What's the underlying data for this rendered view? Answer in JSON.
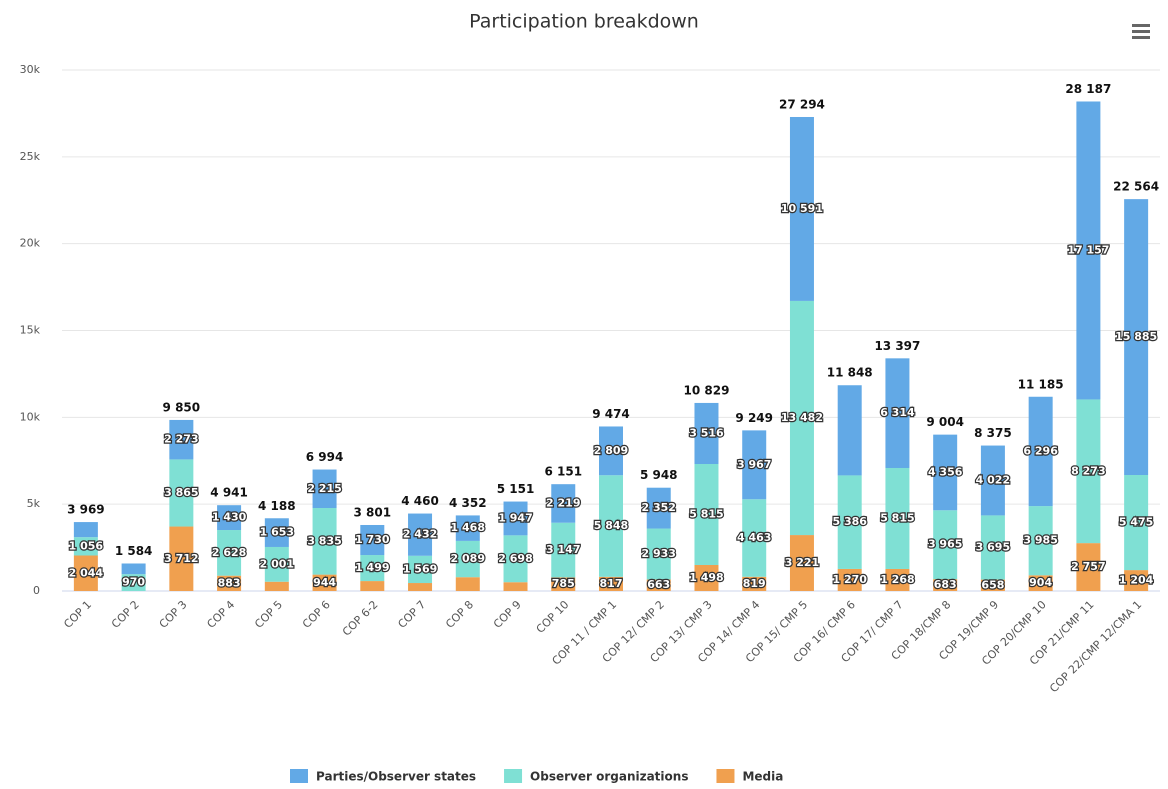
{
  "chart_data": {
    "type": "stacked-bar",
    "title": "Participation breakdown",
    "categories": [
      "COP 1",
      "COP 2",
      "COP 3",
      "COP 4",
      "COP 5",
      "COP 6",
      "COP 6-2",
      "COP 7",
      "COP 8",
      "COP 9",
      "COP 10",
      "COP 11 / CMP 1",
      "COP 12/ CMP 2",
      "COP 13/ CMP 3",
      "COP 14/ CMP 4",
      "COP 15/ CMP 5",
      "COP 16/ CMP 6",
      "COP 17/ CMP 7",
      "COP 18/CMP 8",
      "COP 19/CMP 9",
      "COP 20/CMP 10",
      "COP 21/CMP 11",
      "COP 22/CMP 12/CMA 1"
    ],
    "series": [
      {
        "name": "Parties/Observer states",
        "color": "#62a9e6",
        "values": [
          869,
          614,
          2273,
          1430,
          1653,
          2215,
          1730,
          2432,
          1468,
          1947,
          2219,
          2809,
          2352,
          3516,
          3967,
          10591,
          5192,
          6314,
          4356,
          4022,
          6296,
          17157,
          15885
        ],
        "value_labels": [
          null,
          null,
          "2 273",
          "1 430",
          "1 653",
          "2 215",
          "1 730",
          "2 432",
          "1 468",
          "1 947",
          "2 219",
          "2 809",
          "2 352",
          "3 516",
          "3 967",
          "10 591",
          null,
          "6 314",
          "4 356",
          "4 022",
          "6 296",
          "17 157",
          "15 885"
        ]
      },
      {
        "name": "Observer organizations",
        "color": "#7fe0d4",
        "values": [
          1056,
          970,
          3865,
          2628,
          2001,
          3835,
          1499,
          1569,
          2089,
          2698,
          3147,
          5848,
          2933,
          5815,
          4463,
          13482,
          5386,
          5815,
          3965,
          3695,
          3985,
          8273,
          5475
        ],
        "value_labels": [
          "1 056",
          "970",
          "3 865",
          "2 628",
          "2 001",
          "3 835",
          "1 499",
          "1 569",
          "2 089",
          "2 698",
          "3 147",
          "5 848",
          "2 933",
          "5 815",
          "4 463",
          "13 482",
          "5 386",
          "5 815",
          "3 965",
          "3 695",
          "3 985",
          "8 273",
          "5 475"
        ]
      },
      {
        "name": "Media",
        "color": "#f0a04f",
        "values": [
          2044,
          0,
          3712,
          883,
          534,
          944,
          572,
          459,
          795,
          506,
          785,
          817,
          663,
          1498,
          819,
          3221,
          1270,
          1268,
          683,
          658,
          904,
          2757,
          1204
        ],
        "value_labels": [
          "2 044",
          null,
          "3 712",
          "883",
          null,
          "944",
          null,
          null,
          null,
          null,
          "785",
          "817",
          "663",
          "1 498",
          "819",
          "3 221",
          "1 270",
          "1 268",
          "683",
          "658",
          "904",
          "2 757",
          "1 204"
        ]
      }
    ],
    "totals": [
      3969,
      1584,
      9850,
      4941,
      4188,
      6994,
      3801,
      4460,
      4352,
      5151,
      6151,
      9474,
      5948,
      10829,
      9249,
      27294,
      11848,
      13397,
      9004,
      8375,
      11185,
      28187,
      22564
    ],
    "total_labels": [
      "3 969",
      "1 584",
      "9 850",
      "4 941",
      "4 188",
      "6 994",
      "3 801",
      "4 460",
      "4 352",
      "5 151",
      "6 151",
      "9 474",
      "5 948",
      "10 829",
      "9 249",
      "27 294",
      "11 848",
      "13 397",
      "9 004",
      "8 375",
      "11 185",
      "28 187",
      "22 564"
    ],
    "ylim": [
      0,
      30000
    ],
    "yticks": [
      0,
      {
        "value": 5000,
        "label": "5k"
      },
      {
        "value": 10000,
        "label": "10k"
      },
      {
        "value": 15000,
        "label": "15k"
      },
      {
        "value": 20000,
        "label": "20k"
      },
      {
        "value": 25000,
        "label": "25k"
      },
      {
        "value": 30000,
        "label": "30k"
      }
    ],
    "grid": true,
    "legend": "bottom"
  }
}
